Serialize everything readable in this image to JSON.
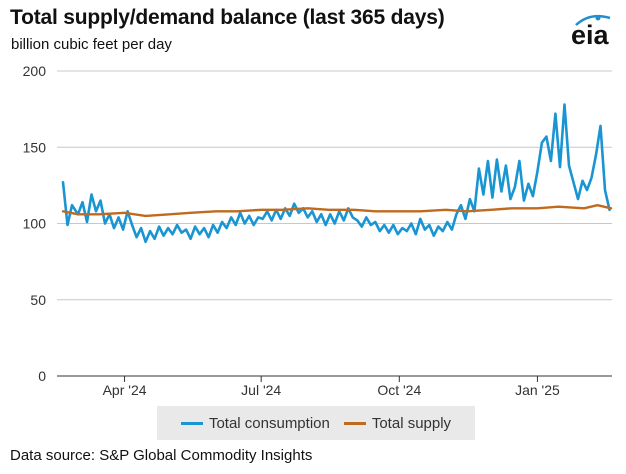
{
  "header": {
    "title": "Total supply/demand balance (last 365 days)",
    "subtitle": "billion cubic feet per day",
    "logo_text": "eia"
  },
  "footer": {
    "source": "Data source: S&P Global Commodity Insights"
  },
  "colors": {
    "consumption": "#1a95d3",
    "supply": "#bf6a1f",
    "grid": "#c8c8c8",
    "axis": "#333333",
    "logo_blue": "#1f8fd0"
  },
  "chart_data": {
    "type": "line",
    "title": "Total supply/demand balance (last 365 days)",
    "ylabel": "billion cubic feet per day",
    "ylim": [
      0,
      200
    ],
    "yticks": [
      0,
      50,
      100,
      150,
      200
    ],
    "xlim": [
      "2024-02-20",
      "2025-02-19"
    ],
    "xticks": [
      {
        "date": "2024-04-01",
        "label": "Apr '24"
      },
      {
        "date": "2024-07-01",
        "label": "Jul '24"
      },
      {
        "date": "2024-10-01",
        "label": "Oct '24"
      },
      {
        "date": "2025-01-01",
        "label": "Jan '25"
      }
    ],
    "grid": true,
    "legend_position": "bottom",
    "series": [
      {
        "name": "Total consumption",
        "color": "#1a95d3",
        "points": [
          [
            "2024-02-20",
            127
          ],
          [
            "2024-02-23",
            99
          ],
          [
            "2024-02-26",
            112
          ],
          [
            "2024-03-01",
            106
          ],
          [
            "2024-03-04",
            114
          ],
          [
            "2024-03-07",
            101
          ],
          [
            "2024-03-10",
            119
          ],
          [
            "2024-03-13",
            108
          ],
          [
            "2024-03-16",
            115
          ],
          [
            "2024-03-19",
            100
          ],
          [
            "2024-03-22",
            106
          ],
          [
            "2024-03-25",
            97
          ],
          [
            "2024-03-28",
            104
          ],
          [
            "2024-03-31",
            96
          ],
          [
            "2024-04-03",
            108
          ],
          [
            "2024-04-06",
            99
          ],
          [
            "2024-04-09",
            91
          ],
          [
            "2024-04-12",
            97
          ],
          [
            "2024-04-15",
            88
          ],
          [
            "2024-04-18",
            95
          ],
          [
            "2024-04-21",
            90
          ],
          [
            "2024-04-24",
            98
          ],
          [
            "2024-04-27",
            92
          ],
          [
            "2024-04-30",
            97
          ],
          [
            "2024-05-03",
            93
          ],
          [
            "2024-05-06",
            99
          ],
          [
            "2024-05-09",
            94
          ],
          [
            "2024-05-12",
            96
          ],
          [
            "2024-05-15",
            90
          ],
          [
            "2024-05-18",
            98
          ],
          [
            "2024-05-21",
            93
          ],
          [
            "2024-05-24",
            97
          ],
          [
            "2024-05-27",
            91
          ],
          [
            "2024-05-30",
            99
          ],
          [
            "2024-06-02",
            94
          ],
          [
            "2024-06-05",
            101
          ],
          [
            "2024-06-08",
            97
          ],
          [
            "2024-06-11",
            104
          ],
          [
            "2024-06-14",
            99
          ],
          [
            "2024-06-17",
            107
          ],
          [
            "2024-06-20",
            100
          ],
          [
            "2024-06-23",
            105
          ],
          [
            "2024-06-26",
            99
          ],
          [
            "2024-06-29",
            104
          ],
          [
            "2024-07-02",
            103
          ],
          [
            "2024-07-05",
            108
          ],
          [
            "2024-07-08",
            102
          ],
          [
            "2024-07-11",
            109
          ],
          [
            "2024-07-14",
            103
          ],
          [
            "2024-07-17",
            110
          ],
          [
            "2024-07-20",
            105
          ],
          [
            "2024-07-23",
            113
          ],
          [
            "2024-07-26",
            107
          ],
          [
            "2024-07-29",
            110
          ],
          [
            "2024-08-01",
            104
          ],
          [
            "2024-08-04",
            108
          ],
          [
            "2024-08-07",
            101
          ],
          [
            "2024-08-10",
            106
          ],
          [
            "2024-08-13",
            99
          ],
          [
            "2024-08-16",
            106
          ],
          [
            "2024-08-19",
            100
          ],
          [
            "2024-08-22",
            108
          ],
          [
            "2024-08-25",
            102
          ],
          [
            "2024-08-28",
            110
          ],
          [
            "2024-08-31",
            104
          ],
          [
            "2024-09-03",
            102
          ],
          [
            "2024-09-06",
            98
          ],
          [
            "2024-09-09",
            104
          ],
          [
            "2024-09-12",
            99
          ],
          [
            "2024-09-15",
            101
          ],
          [
            "2024-09-18",
            95
          ],
          [
            "2024-09-21",
            99
          ],
          [
            "2024-09-24",
            94
          ],
          [
            "2024-09-27",
            99
          ],
          [
            "2024-09-30",
            93
          ],
          [
            "2024-10-03",
            97
          ],
          [
            "2024-10-06",
            95
          ],
          [
            "2024-10-09",
            100
          ],
          [
            "2024-10-12",
            93
          ],
          [
            "2024-10-15",
            103
          ],
          [
            "2024-10-18",
            96
          ],
          [
            "2024-10-21",
            99
          ],
          [
            "2024-10-24",
            92
          ],
          [
            "2024-10-27",
            98
          ],
          [
            "2024-10-30",
            95
          ],
          [
            "2024-11-02",
            101
          ],
          [
            "2024-11-05",
            96
          ],
          [
            "2024-11-08",
            106
          ],
          [
            "2024-11-11",
            112
          ],
          [
            "2024-11-14",
            103
          ],
          [
            "2024-11-17",
            116
          ],
          [
            "2024-11-20",
            108
          ],
          [
            "2024-11-23",
            136
          ],
          [
            "2024-11-26",
            119
          ],
          [
            "2024-11-29",
            141
          ],
          [
            "2024-12-02",
            117
          ],
          [
            "2024-12-05",
            142
          ],
          [
            "2024-12-08",
            121
          ],
          [
            "2024-12-11",
            138
          ],
          [
            "2024-12-14",
            116
          ],
          [
            "2024-12-17",
            124
          ],
          [
            "2024-12-20",
            141
          ],
          [
            "2024-12-23",
            115
          ],
          [
            "2024-12-26",
            126
          ],
          [
            "2024-12-29",
            118
          ],
          [
            "2025-01-01",
            134
          ],
          [
            "2025-01-04",
            153
          ],
          [
            "2025-01-07",
            157
          ],
          [
            "2025-01-10",
            141
          ],
          [
            "2025-01-13",
            172
          ],
          [
            "2025-01-16",
            137
          ],
          [
            "2025-01-19",
            178
          ],
          [
            "2025-01-22",
            138
          ],
          [
            "2025-01-25",
            127
          ],
          [
            "2025-01-28",
            116
          ],
          [
            "2025-01-31",
            128
          ],
          [
            "2025-02-03",
            122
          ],
          [
            "2025-02-06",
            130
          ],
          [
            "2025-02-09",
            145
          ],
          [
            "2025-02-12",
            164
          ],
          [
            "2025-02-15",
            122
          ],
          [
            "2025-02-18",
            109
          ]
        ]
      },
      {
        "name": "Total supply",
        "color": "#bf6a1f",
        "points": [
          [
            "2024-02-20",
            108
          ],
          [
            "2024-03-01",
            106
          ],
          [
            "2024-03-15",
            106
          ],
          [
            "2024-04-01",
            107
          ],
          [
            "2024-04-15",
            105
          ],
          [
            "2024-05-01",
            106
          ],
          [
            "2024-05-15",
            107
          ],
          [
            "2024-06-01",
            108
          ],
          [
            "2024-06-15",
            108
          ],
          [
            "2024-07-01",
            109
          ],
          [
            "2024-07-15",
            109
          ],
          [
            "2024-08-01",
            110
          ],
          [
            "2024-08-15",
            109
          ],
          [
            "2024-09-01",
            109
          ],
          [
            "2024-09-15",
            108
          ],
          [
            "2024-10-01",
            108
          ],
          [
            "2024-10-15",
            108
          ],
          [
            "2024-11-01",
            109
          ],
          [
            "2024-11-15",
            108
          ],
          [
            "2024-12-01",
            109
          ],
          [
            "2024-12-15",
            110
          ],
          [
            "2025-01-01",
            110
          ],
          [
            "2025-01-15",
            111
          ],
          [
            "2025-02-01",
            110
          ],
          [
            "2025-02-10",
            112
          ],
          [
            "2025-02-19",
            110
          ]
        ]
      }
    ]
  }
}
